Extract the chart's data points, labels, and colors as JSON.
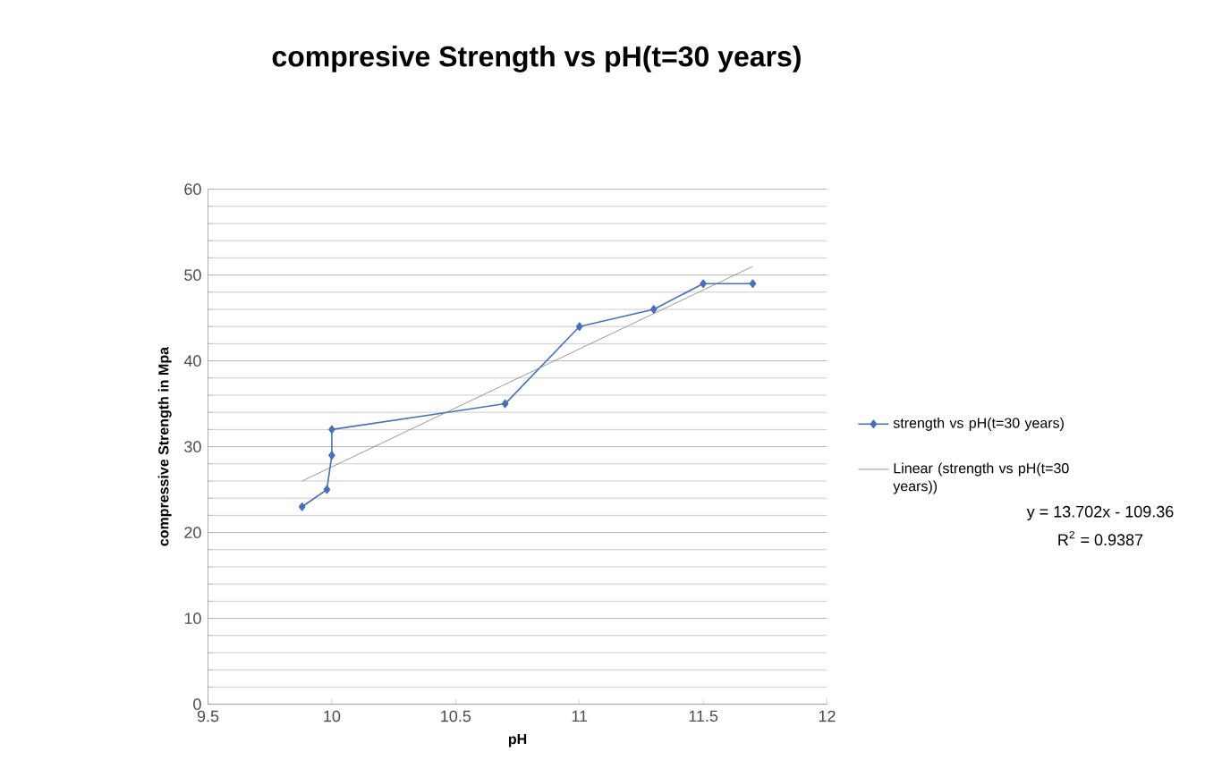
{
  "chart_data": {
    "type": "line",
    "title": "compresive Strength vs pH(t=30 years)",
    "xlabel": "pH",
    "ylabel": "compressive Strength in Mpa",
    "xlim": [
      9.5,
      12
    ],
    "xticks": [
      9.5,
      10,
      10.5,
      11,
      11.5,
      12
    ],
    "ylim": [
      0,
      60
    ],
    "yticks": [
      0,
      10,
      20,
      30,
      40,
      50,
      60
    ],
    "grid": "y",
    "legend": "right",
    "series": [
      {
        "name": "strength vs pH(t=30 years)",
        "color": "#4a6fb5",
        "marker": "diamond",
        "x": [
          9.88,
          9.98,
          10,
          10,
          10.7,
          11,
          11.3,
          11.5,
          11.7
        ],
        "values": [
          23,
          25,
          29,
          32,
          35,
          44,
          46,
          49,
          49
        ]
      },
      {
        "name": "Linear (strength vs pH(t=30 years))",
        "type": "line",
        "color": "#7f7f7f",
        "marker": "none",
        "x": [
          9.88,
          11.7
        ],
        "values": [
          26,
          51
        ]
      }
    ],
    "annotations": [
      "y = 13.702x - 109.36",
      "R$^{2}$ = 0.9387"
    ]
  }
}
